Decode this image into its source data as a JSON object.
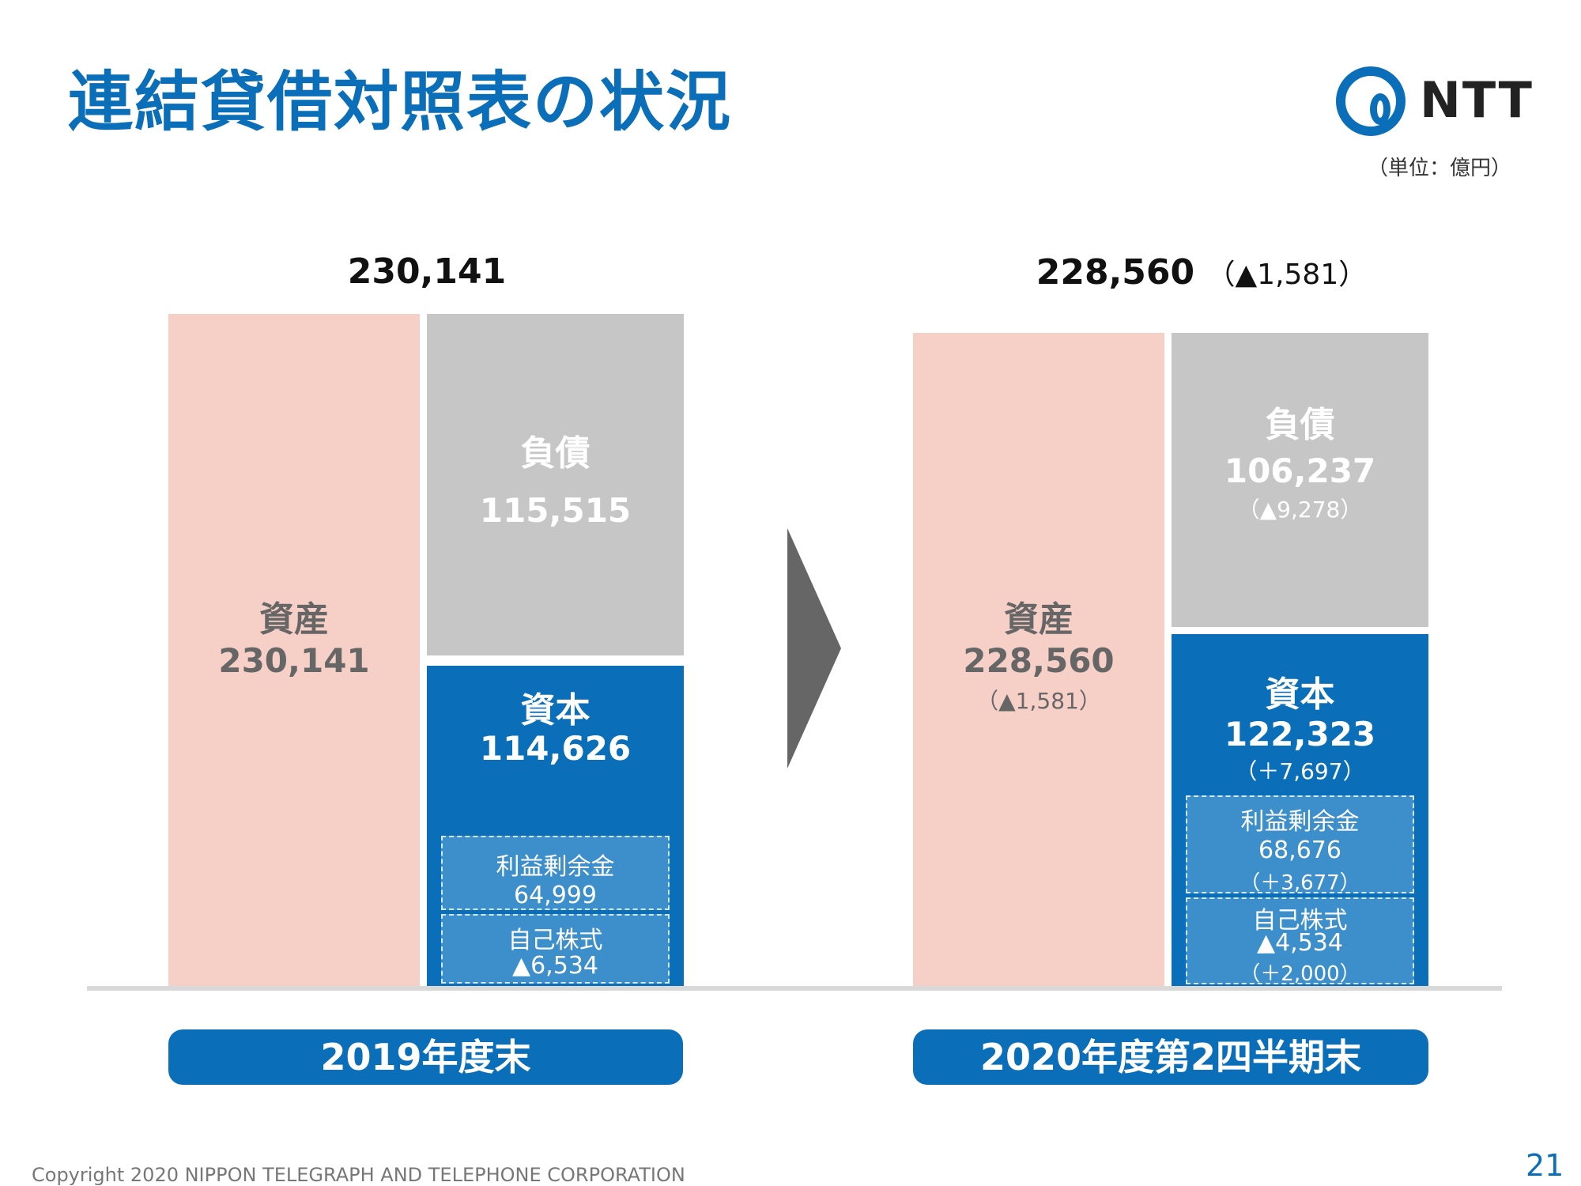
{
  "title": "連結貸借対照表の状況",
  "logo_text": "NTT",
  "unit": "（単位：億円）",
  "colors": {
    "accent": "#0B6EB8",
    "asset": "#F6CFC7",
    "liability": "#C6C6C6",
    "equity": "#0B6EB8"
  },
  "chart_data": {
    "type": "bar",
    "subtype": "stacked balance sheet",
    "categories": [
      "2019年度末",
      "2020年度第2四半期末"
    ],
    "columns": [
      {
        "period": "2019年度末",
        "total": "230,141",
        "total_change": "",
        "assets": {
          "label": "資産",
          "value": "230,141",
          "change": ""
        },
        "liabilities": {
          "label": "負債",
          "value": "115,515",
          "change": ""
        },
        "equity": {
          "label": "資本",
          "value": "114,626",
          "change": "",
          "retained_earnings": {
            "label": "利益剰余金",
            "value": "64,999",
            "change": ""
          },
          "treasury_stock": {
            "label": "自己株式",
            "value": "▲6,534",
            "change": ""
          }
        }
      },
      {
        "period": "2020年度第2四半期末",
        "total": "228,560",
        "total_change": "（▲1,581）",
        "assets": {
          "label": "資産",
          "value": "228,560",
          "change": "（▲1,581）"
        },
        "liabilities": {
          "label": "負債",
          "value": "106,237",
          "change": "（▲9,278）"
        },
        "equity": {
          "label": "資本",
          "value": "122,323",
          "change": "（＋7,697）",
          "retained_earnings": {
            "label": "利益剰余金",
            "value": "68,676",
            "change": "（＋3,677）"
          },
          "treasury_stock": {
            "label": "自己株式",
            "value": "▲4,534",
            "change": "（＋2,000）"
          }
        }
      }
    ]
  },
  "footer": "Copyright 2020 NIPPON TELEGRAPH AND TELEPHONE CORPORATION",
  "page_number": "21"
}
